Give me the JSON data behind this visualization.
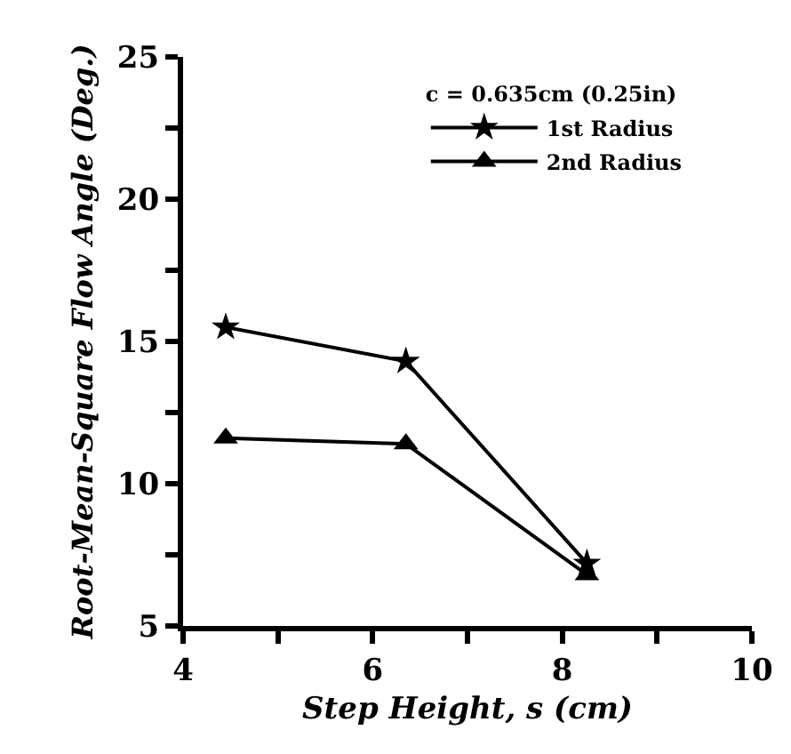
{
  "chart_data": {
    "type": "line",
    "xlabel": "Step Height, s (cm)",
    "ylabel": "Root-Mean-Square Flow Angle (Deg.)",
    "legend_title": "c = 0.635cm (0.25in)",
    "legend": "top right",
    "x": [
      4.45,
      6.35,
      8.26
    ],
    "series": [
      {
        "name": "1st Radius",
        "color": "#000000",
        "marker": "star",
        "values": [
          15.5,
          14.3,
          7.2
        ]
      },
      {
        "name": "2nd Radius",
        "color": "#000000",
        "marker": "triangle",
        "values": [
          11.6,
          11.4,
          6.8
        ]
      }
    ],
    "line_style": "solid",
    "grid": false,
    "xlim": [
      4,
      10
    ],
    "xticks": [
      4,
      {
        "value": 5,
        "label": null
      },
      6,
      {
        "value": 7,
        "label": null
      },
      8,
      {
        "value": 9,
        "label": null
      },
      10
    ],
    "ylim": [
      5,
      25
    ],
    "yticks": [
      5,
      {
        "value": 7.5,
        "label": null
      },
      10,
      {
        "value": 12.5,
        "label": null
      },
      15,
      {
        "value": 17.5,
        "label": null
      },
      20,
      {
        "value": 22.5,
        "label": null
      },
      25
    ]
  }
}
